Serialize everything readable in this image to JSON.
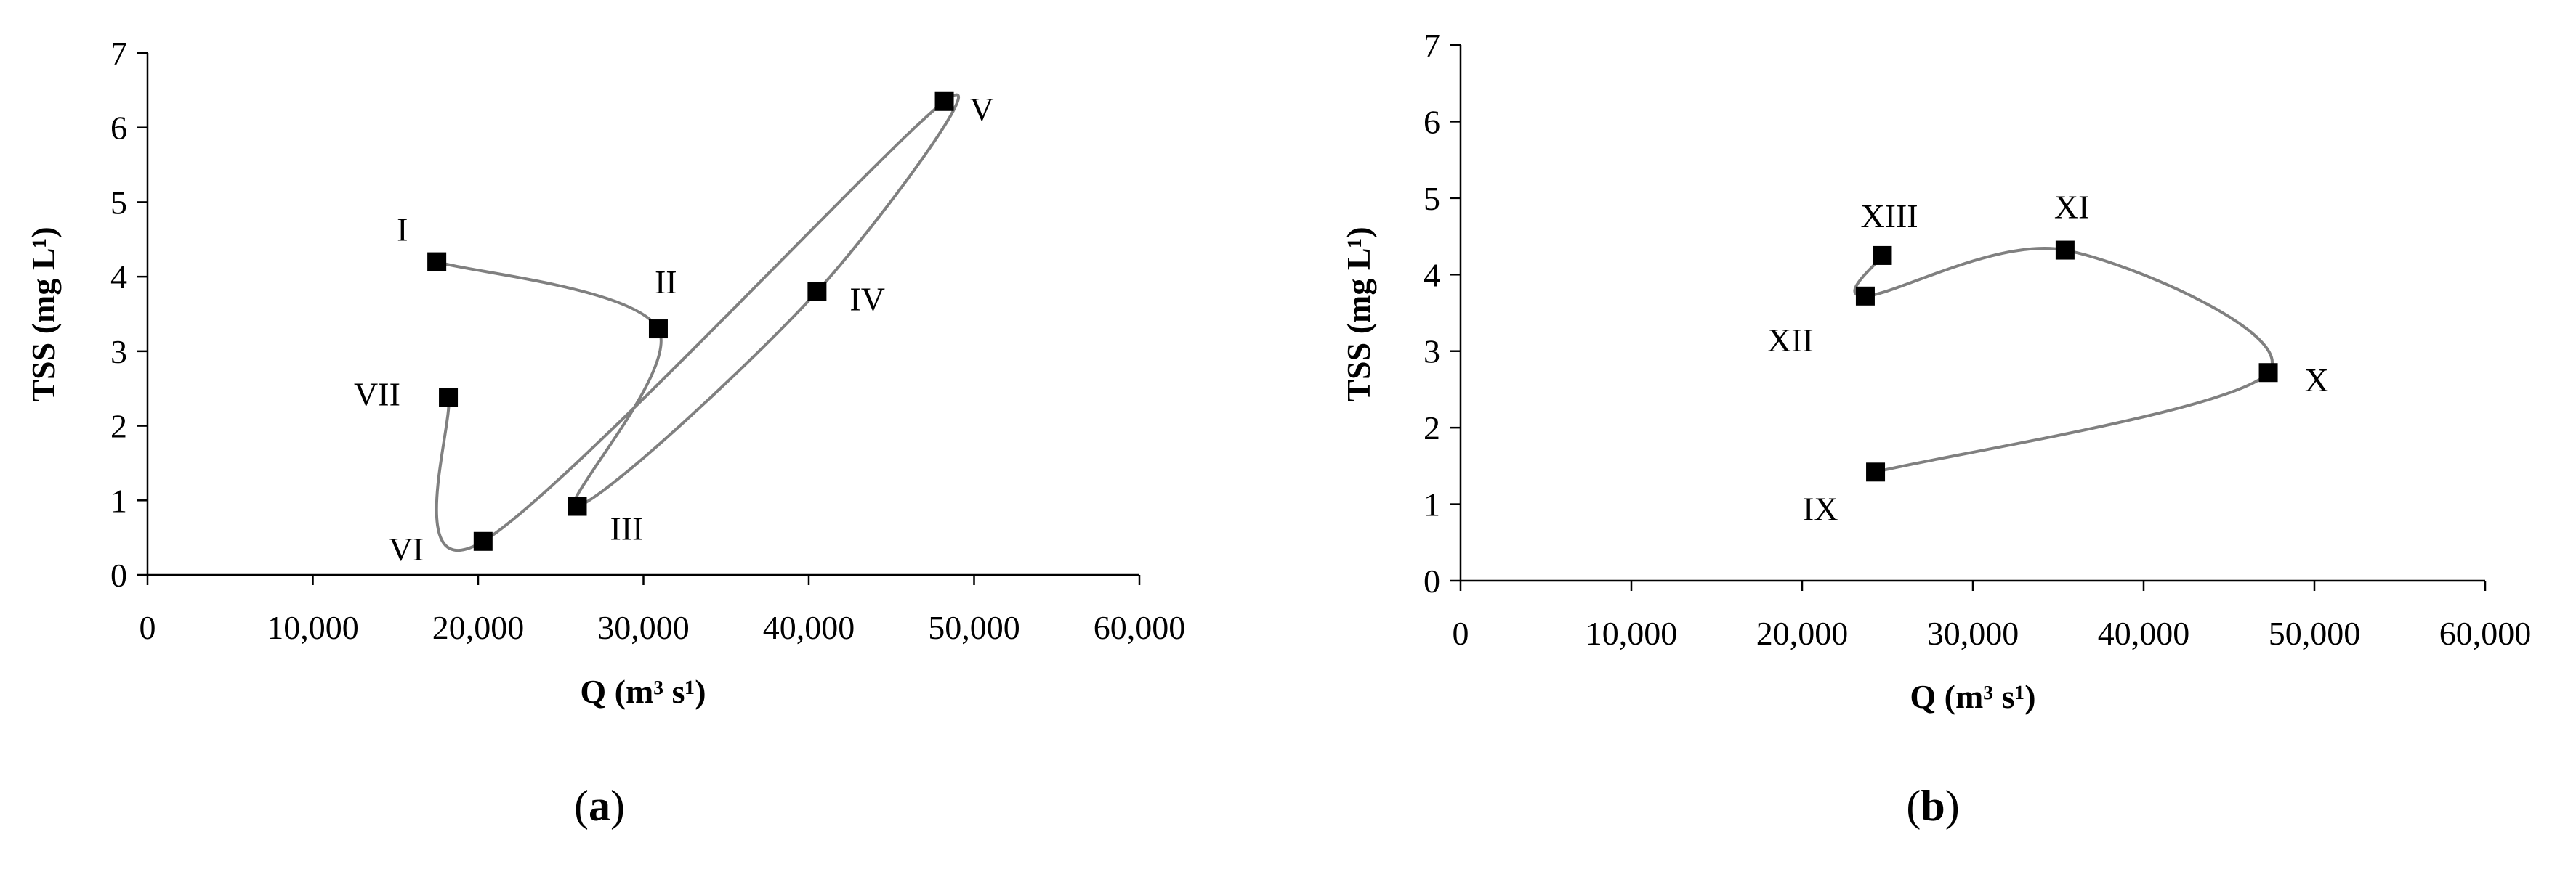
{
  "chart_data": [
    {
      "type": "scatter",
      "panel_label": "a",
      "xlabel": "Q (m³ s¹)",
      "ylabel": "TSS (mg L¹)",
      "xlim": [
        0,
        60000
      ],
      "ylim": [
        0,
        7
      ],
      "x_ticks": [
        "0",
        "10,000",
        "20,000",
        "30,000",
        "40,000",
        "50,000",
        "60,000"
      ],
      "y_ticks": [
        "0",
        "1",
        "2",
        "3",
        "4",
        "5",
        "6",
        "7"
      ],
      "grid": false,
      "legend": "none",
      "line_color": "#808080",
      "marker_color": "#000000",
      "points": [
        {
          "label": "I",
          "x": 17500,
          "y": 4.2
        },
        {
          "label": "II",
          "x": 30900,
          "y": 3.3
        },
        {
          "label": "III",
          "x": 26000,
          "y": 0.92
        },
        {
          "label": "IV",
          "x": 40500,
          "y": 3.8
        },
        {
          "label": "V",
          "x": 48200,
          "y": 6.35
        },
        {
          "label": "VI",
          "x": 20300,
          "y": 0.45
        },
        {
          "label": "VII",
          "x": 18200,
          "y": 2.38
        }
      ]
    },
    {
      "type": "scatter",
      "panel_label": "b",
      "xlabel": "Q (m³ s¹)",
      "ylabel": "TSS (mg L¹)",
      "xlim": [
        0,
        60000
      ],
      "ylim": [
        0,
        7
      ],
      "x_ticks": [
        "0",
        "10,000",
        "20,000",
        "30,000",
        "40,000",
        "50,000",
        "60,000"
      ],
      "y_ticks": [
        "0",
        "1",
        "2",
        "3",
        "4",
        "5",
        "6",
        "7"
      ],
      "grid": false,
      "legend": "none",
      "line_color": "#808080",
      "marker_color": "#000000",
      "points": [
        {
          "label": "IX",
          "x": 24300,
          "y": 1.42
        },
        {
          "label": "X",
          "x": 47300,
          "y": 2.72
        },
        {
          "label": "XI",
          "x": 35400,
          "y": 4.32
        },
        {
          "label": "XII",
          "x": 23700,
          "y": 3.72
        },
        {
          "label": "XIII",
          "x": 24700,
          "y": 4.25
        }
      ]
    }
  ]
}
